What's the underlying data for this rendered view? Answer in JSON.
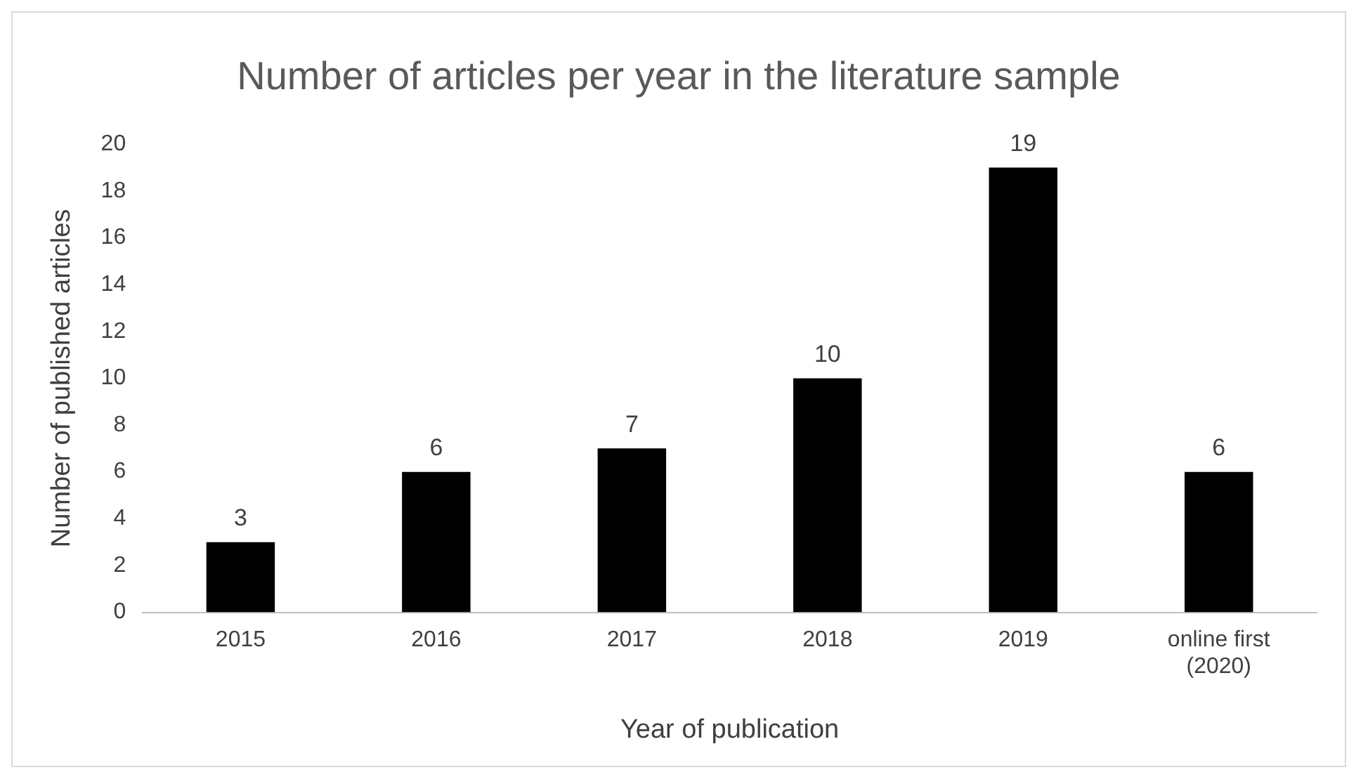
{
  "chart_data": {
    "type": "bar",
    "title": "Number of articles per year in the literature sample",
    "xlabel": "Year of publication",
    "ylabel": "Number of published articles",
    "categories": [
      "2015",
      "2016",
      "2017",
      "2018",
      "2019",
      "online first (2020)"
    ],
    "values": [
      3,
      6,
      7,
      10,
      19,
      6
    ],
    "color": "#000000",
    "ylim": [
      0,
      20
    ],
    "yticks": [
      0,
      2,
      4,
      6,
      8,
      10,
      12,
      14,
      16,
      18,
      20
    ],
    "grid": false,
    "legend": false,
    "data_labels": true
  }
}
